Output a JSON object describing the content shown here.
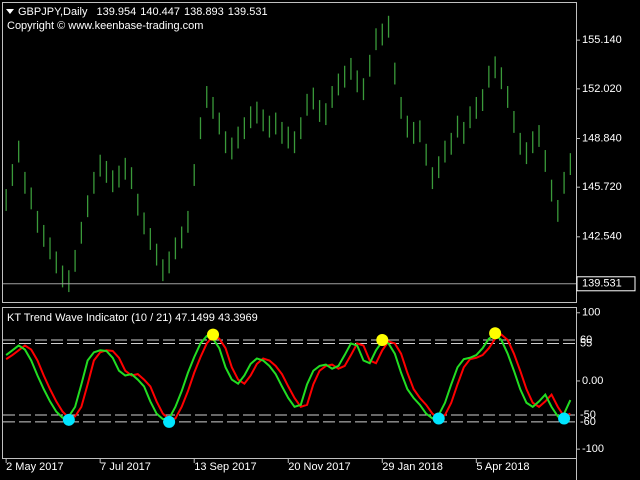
{
  "chart_data": [
    {
      "type": "ohlc",
      "title": "GBPJPY,Daily",
      "ohlc": [
        139.954,
        140.447,
        138.893,
        139.531
      ],
      "copyright": "Copyright © www.keenbase-trading.com",
      "color": "#3a9a3a",
      "xlim": [
        -0.5,
        90.9
      ],
      "ylim": [
        138.3,
        157.52
      ],
      "yticks": [
        {
          "value": 155.14,
          "label": "155.140"
        },
        {
          "value": 152.02,
          "label": "152.020"
        },
        {
          "value": 148.84,
          "label": "148.840"
        },
        {
          "value": 145.72,
          "label": "145.720"
        },
        {
          "value": 142.54,
          "label": "142.540"
        }
      ],
      "high": [
        145.6,
        147.2,
        148.7,
        146.7,
        145.7,
        144.2,
        143.3,
        142.5,
        141.6,
        140.7,
        140.4,
        141.7,
        143.5,
        145.2,
        146.7,
        147.8,
        147.4,
        146.8,
        147.1,
        147.6,
        147.0,
        145.3,
        144.1,
        143.1,
        142.1,
        141.1,
        141.6,
        142.5,
        143.2,
        144.2,
        147.2,
        150.2,
        152.2,
        151.5,
        150.5,
        149.3,
        148.9,
        149.6,
        150.2,
        150.9,
        151.2,
        150.7,
        150.3,
        150.5,
        149.9,
        149.6,
        149.3,
        150.2,
        151.7,
        152.1,
        151.3,
        151.1,
        152.2,
        153.0,
        153.5,
        154.0,
        153.2,
        152.7,
        154.2,
        155.9,
        156.2,
        156.7,
        153.7,
        151.5,
        150.3,
        149.9,
        150.0,
        148.5,
        147.0,
        147.7,
        148.7,
        149.2,
        150.3,
        149.9,
        150.9,
        151.5,
        152.0,
        153.5,
        154.1,
        153.4,
        152.2,
        150.6,
        149.2,
        148.6,
        149.3,
        149.7,
        148.1,
        146.2,
        144.9,
        146.7,
        147.9
      ],
      "low": [
        144.2,
        145.8,
        147.3,
        145.3,
        144.3,
        142.8,
        141.9,
        141.1,
        140.2,
        139.3,
        139.0,
        140.3,
        142.1,
        143.8,
        145.3,
        146.4,
        146.0,
        145.4,
        145.7,
        146.2,
        145.6,
        143.9,
        142.7,
        141.7,
        140.7,
        139.7,
        140.2,
        141.1,
        141.8,
        142.8,
        145.8,
        148.8,
        150.8,
        150.1,
        149.1,
        147.9,
        147.5,
        148.2,
        148.8,
        149.5,
        149.8,
        149.3,
        148.9,
        149.1,
        148.5,
        148.2,
        147.9,
        148.8,
        150.3,
        150.7,
        149.9,
        149.7,
        150.8,
        151.6,
        152.1,
        152.6,
        151.8,
        151.3,
        152.8,
        154.5,
        154.8,
        155.3,
        152.3,
        150.1,
        148.9,
        148.5,
        148.6,
        147.1,
        145.6,
        146.3,
        147.3,
        147.8,
        148.9,
        148.5,
        149.5,
        150.1,
        150.6,
        152.1,
        152.7,
        152.0,
        150.8,
        149.2,
        147.8,
        147.2,
        147.9,
        148.3,
        146.7,
        144.8,
        143.5,
        145.3,
        146.5
      ]
    },
    {
      "type": "line",
      "title": "KT Trend Wave Indicator (10 / 21) 47.1499 43.3969",
      "xlim": [
        -0.5,
        90.9
      ],
      "ylim": [
        -113,
        107
      ],
      "yticks": [
        100,
        {
          "value": 0,
          "label": "0.00"
        },
        -100
      ],
      "levels": [
        60,
        55,
        -50,
        -60
      ],
      "xticks": [
        {
          "value": 0,
          "label": "2 May 2017"
        },
        {
          "value": 15,
          "label": "7 Jul 2017"
        },
        {
          "value": 30,
          "label": "13 Sep 2017"
        },
        {
          "value": 45,
          "label": "20 Nov 2017"
        },
        {
          "value": 60,
          "label": "29 Jan 2018"
        },
        {
          "value": 75,
          "label": "5 Apr 2018"
        }
      ],
      "series": [
        {
          "color": "#ff0000",
          "values": [
            32,
            38,
            45,
            52,
            46,
            30,
            8,
            -12,
            -30,
            -45,
            -54,
            -52,
            -38,
            -5,
            30,
            42,
            45,
            44,
            34,
            15,
            8,
            10,
            2,
            -8,
            -30,
            -48,
            -56,
            -55,
            -38,
            -15,
            12,
            35,
            55,
            66,
            62,
            48,
            20,
            2,
            -4,
            8,
            25,
            33,
            30,
            22,
            10,
            -8,
            -25,
            -38,
            -35,
            -5,
            15,
            22,
            24,
            18,
            22,
            38,
            55,
            52,
            30,
            26,
            45,
            58,
            55,
            40,
            12,
            -12,
            -25,
            -35,
            -48,
            -55,
            -50,
            -32,
            -5,
            20,
            32,
            34,
            38,
            48,
            62,
            68,
            60,
            40,
            15,
            -12,
            -32,
            -38,
            -30,
            -20,
            -38,
            -52,
            -48
          ]
        },
        {
          "color": "#22dd22",
          "values": [
            38,
            45,
            52,
            46,
            30,
            8,
            -12,
            -30,
            -45,
            -54,
            -52,
            -38,
            -5,
            30,
            42,
            45,
            44,
            34,
            15,
            8,
            10,
            2,
            -8,
            -30,
            -48,
            -56,
            -55,
            -38,
            -15,
            12,
            35,
            55,
            66,
            62,
            48,
            20,
            2,
            -4,
            8,
            25,
            33,
            30,
            22,
            10,
            -8,
            -25,
            -38,
            -35,
            -5,
            15,
            22,
            24,
            18,
            22,
            38,
            55,
            52,
            30,
            26,
            45,
            58,
            55,
            40,
            12,
            -12,
            -25,
            -35,
            -48,
            -55,
            -50,
            -32,
            -5,
            20,
            32,
            34,
            38,
            48,
            62,
            68,
            60,
            40,
            15,
            -12,
            -32,
            -38,
            -30,
            -20,
            -38,
            -52,
            -48,
            -28
          ]
        }
      ],
      "low_dots": {
        "color": "#00e5ff",
        "x": [
          10,
          26,
          69,
          89
        ],
        "values": [
          -57,
          -60,
          -55,
          -55
        ]
      },
      "high_dots": {
        "color": "#ffff00",
        "x": [
          33,
          60,
          78
        ],
        "values": [
          68,
          60,
          70
        ]
      }
    }
  ]
}
